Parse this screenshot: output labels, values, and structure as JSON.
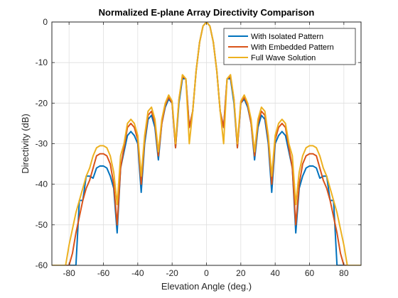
{
  "chart_data": {
    "type": "line",
    "title": "Normalized E-plane Array Directivity Comparison",
    "xlabel": "Elevation Angle (deg.)",
    "ylabel": "Directivity (dB)",
    "xlim": [
      -90,
      90
    ],
    "ylim": [
      -60,
      0
    ],
    "xticks": [
      -80,
      -60,
      -40,
      -20,
      0,
      20,
      40,
      60,
      80
    ],
    "yticks": [
      0,
      -10,
      -20,
      -30,
      -40,
      -50,
      -60
    ],
    "grid": true,
    "legend_position": "top-right",
    "series": [
      {
        "name": "With Isolated Pattern",
        "color": "#0072BD",
        "x": [
          0,
          2,
          4,
          6,
          8,
          10,
          12,
          14,
          16,
          18,
          20,
          22,
          24,
          26,
          28,
          30,
          32,
          34,
          36,
          38,
          40,
          42,
          44,
          46,
          48,
          50,
          52,
          54,
          56,
          58,
          60,
          62,
          64,
          66,
          68,
          70,
          72,
          74,
          76,
          78,
          80,
          82,
          84,
          86,
          88,
          90
        ],
        "y": [
          0,
          -1,
          -5,
          -12,
          -22,
          -26,
          -14,
          -14,
          -20,
          -31,
          -20,
          -19,
          -21,
          -25,
          -34,
          -26,
          -23,
          -24,
          -30,
          -42,
          -30,
          -28,
          -27,
          -28,
          -32,
          -36,
          -52,
          -41,
          -38,
          -36,
          -35.5,
          -35.5,
          -36,
          -38.5,
          -38,
          -38,
          -44,
          -44,
          -60,
          -60,
          -60,
          -60,
          -60,
          -60,
          -60,
          -60
        ]
      },
      {
        "name": "With Embedded Pattern",
        "color": "#D95319",
        "x": [
          0,
          2,
          4,
          6,
          8,
          10,
          12,
          14,
          16,
          18,
          20,
          22,
          24,
          26,
          28,
          30,
          32,
          34,
          36,
          38,
          40,
          42,
          44,
          46,
          48,
          50,
          52,
          54,
          56,
          58,
          60,
          62,
          64,
          66,
          68,
          70,
          72,
          74,
          76,
          78,
          80,
          82,
          84,
          86,
          88,
          90
        ],
        "y": [
          0,
          -1,
          -5,
          -12,
          -22,
          -26,
          -14,
          -13.5,
          -19,
          -31,
          -20,
          -18.5,
          -20.5,
          -25,
          -33,
          -25,
          -22,
          -23,
          -29,
          -40,
          -29,
          -26,
          -25,
          -26,
          -31,
          -36,
          -50,
          -40,
          -35,
          -33,
          -32.5,
          -32.5,
          -33,
          -36,
          -39,
          -41,
          -44,
          -48,
          -52,
          -57,
          -60,
          -60,
          -60,
          -60,
          -60,
          -60
        ]
      },
      {
        "name": "Full Wave Solution",
        "color": "#EDB120",
        "x": [
          0,
          2,
          4,
          6,
          8,
          10,
          12,
          14,
          16,
          18,
          20,
          22,
          24,
          26,
          28,
          30,
          32,
          34,
          36,
          38,
          40,
          42,
          44,
          46,
          48,
          50,
          52,
          54,
          56,
          58,
          60,
          62,
          64,
          66,
          68,
          70,
          72,
          74,
          76,
          78,
          80,
          82,
          84,
          86,
          88,
          90
        ],
        "y": [
          0,
          -1,
          -5,
          -12,
          -22,
          -30,
          -14,
          -13,
          -19,
          -30,
          -19.5,
          -18,
          -20,
          -24,
          -32,
          -24,
          -21,
          -22,
          -28,
          -38,
          -28,
          -25,
          -24,
          -25,
          -30,
          -33,
          -45,
          -37,
          -33,
          -31,
          -30.5,
          -30.5,
          -31,
          -33,
          -36,
          -38,
          -41,
          -44,
          -47,
          -51,
          -55,
          -60,
          -60,
          -60,
          -60,
          -60
        ]
      }
    ]
  }
}
